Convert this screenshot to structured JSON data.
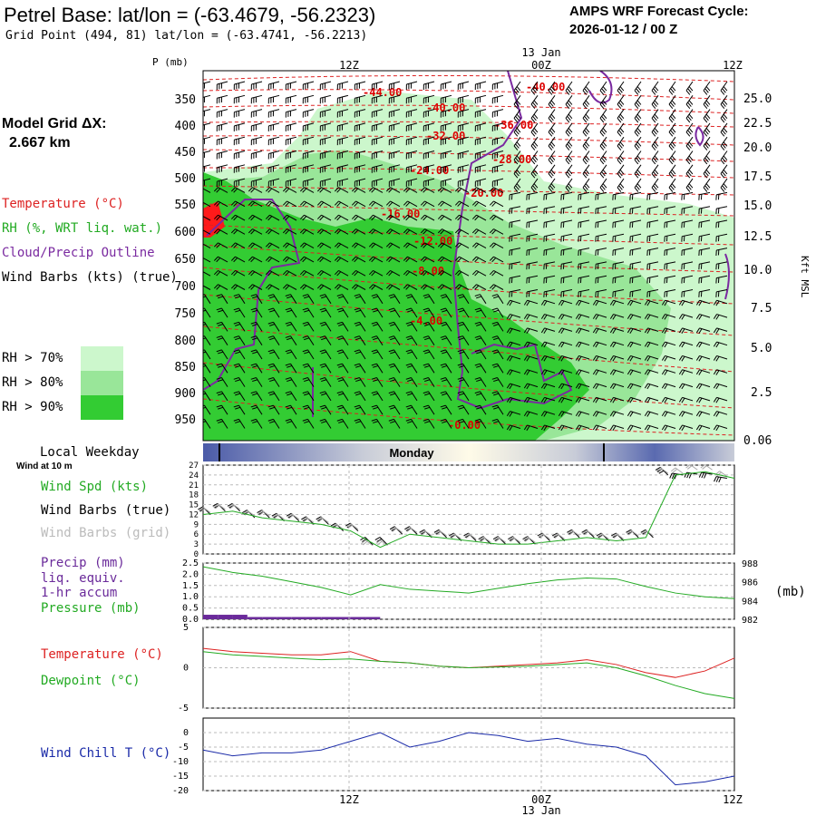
{
  "header": {
    "title": "Petrel Base:  lat/lon = (-63.4679, -56.2323)",
    "grid_point": "Grid Point (494, 81) lat/lon = (-63.4741, -56.2213)",
    "cycle_line1": "AMPS WRF Forecast Cycle:",
    "cycle_line2": "2026-01-12 / 00  Z"
  },
  "sidebar": {
    "model_grid_label": "Model Grid ΔX:",
    "model_grid_value": "2.667 km",
    "legend": [
      {
        "text": "Temperature (°C)",
        "color": "#dd2222"
      },
      {
        "text": "RH (%, WRT liq. wat.)",
        "color": "#22aa22"
      },
      {
        "text": "Cloud/Precip Outline",
        "color": "#7a2aa0"
      },
      {
        "text": "Wind Barbs (kts) (true)",
        "color": "#000000"
      }
    ],
    "rh_legend": [
      {
        "label": "RH > 70%",
        "color": "#ccf7cc"
      },
      {
        "label": "RH > 80%",
        "color": "#99e699"
      },
      {
        "label": "RH > 90%",
        "color": "#33cc33"
      }
    ],
    "local_weekday": "Local Weekday",
    "wind_at": "Wind at 10 m"
  },
  "time_axis": {
    "top_date": "13 Jan",
    "bottom_date": "13 Jan",
    "ticks": [
      "12Z",
      "00Z",
      "12Z"
    ],
    "weekday_label": "Monday"
  },
  "chart_data": [
    {
      "type": "heatmap",
      "name": "vertical_cross_section",
      "ylabel": "P (mb)",
      "y2label": "Kft MSL",
      "pressure_ticks": [
        "350",
        "400",
        "450",
        "500",
        "550",
        "600",
        "650",
        "700",
        "750",
        "800",
        "850",
        "900",
        "950"
      ],
      "height_ticks": [
        "25.0",
        "22.5",
        "20.0",
        "17.5",
        "15.0",
        "12.5",
        "10.0",
        "7.5",
        "5.0",
        "2.5",
        "0.06"
      ],
      "temperature_contour_labels": [
        "-44.00",
        "-40.00",
        "-40.00",
        "-36.00",
        "-32.00",
        "-28.00",
        "-24.00",
        "-20.00",
        "-16.00",
        "-12.00",
        "-8.00",
        "-4.00",
        "-0.00"
      ]
    },
    {
      "type": "line",
      "name": "wind_speed",
      "ylabel": "Wind Spd (kts)",
      "ylim": [
        0,
        27
      ],
      "yticks": [
        "27",
        "24",
        "21",
        "18",
        "15",
        "12",
        "9",
        "6",
        "3",
        "0"
      ],
      "series_labels": [
        "Wind Spd (kts)",
        "Wind Barbs (true)",
        "Wind Barbs (grid)"
      ],
      "x_hours": [
        0,
        2,
        4,
        6,
        8,
        10,
        12,
        14,
        16,
        18,
        20,
        22,
        24,
        26,
        28,
        30,
        32,
        34,
        36
      ],
      "values": [
        12,
        13,
        11,
        10,
        9,
        7,
        2,
        6,
        5,
        4,
        3,
        3,
        4,
        5,
        4,
        5,
        24,
        25,
        23
      ]
    },
    {
      "type": "bar",
      "name": "precip_pressure",
      "series_labels": [
        "Precip (mm)",
        "liq. equiv.",
        "1-hr accum",
        "Pressure (mb)"
      ],
      "precip_ylim": [
        0,
        2.5
      ],
      "precip_yticks": [
        "2.5",
        "2.0",
        "1.5",
        "1.0",
        "0.5",
        "0.0"
      ],
      "pressure_ylim": [
        982,
        988
      ],
      "pressure_yticks": [
        "988",
        "986",
        "984",
        "982"
      ],
      "pressure_unit": "(mb)",
      "precip_hours": [
        0,
        1,
        2,
        3,
        4,
        5,
        6,
        7,
        8,
        9,
        10,
        11,
        12,
        13,
        14,
        15,
        16,
        17,
        18,
        19,
        20,
        21,
        22,
        23,
        24,
        25,
        26,
        27,
        28,
        29,
        30,
        31,
        32,
        33,
        34,
        35,
        36
      ],
      "precip_values": [
        0.2,
        0.2,
        0.2,
        0.1,
        0.1,
        0.1,
        0.1,
        0.1,
        0.1,
        0.1,
        0.1,
        0.1,
        0.0,
        0.0,
        0.0,
        0.0,
        0.0,
        0.0,
        0.0,
        0.0,
        0.0,
        0.0,
        0.0,
        0.0,
        0.0,
        0.0,
        0.0,
        0.0,
        0.0,
        0.0,
        0.0,
        0.0,
        0.0,
        0.0,
        0.0,
        0.0,
        0.0
      ],
      "pressure_hours": [
        0,
        2,
        4,
        6,
        8,
        10,
        12,
        14,
        16,
        18,
        20,
        22,
        24,
        26,
        28,
        30,
        32,
        34,
        36
      ],
      "pressure_values": [
        987.6,
        987.0,
        986.6,
        986.0,
        985.4,
        984.6,
        985.7,
        985.2,
        985.0,
        984.8,
        985.3,
        985.8,
        986.2,
        986.4,
        986.3,
        985.5,
        984.8,
        984.4,
        984.2
      ]
    },
    {
      "type": "line",
      "name": "temperature_dewpoint",
      "series_labels": [
        "Temperature (°C)",
        "Dewpoint (°C)"
      ],
      "ylim": [
        -5,
        5
      ],
      "yticks": [
        "5",
        "0",
        "-5"
      ],
      "x_hours": [
        0,
        2,
        4,
        6,
        8,
        10,
        12,
        14,
        16,
        18,
        20,
        22,
        24,
        26,
        28,
        30,
        32,
        34,
        36
      ],
      "temperature": [
        2.4,
        2.0,
        1.8,
        1.6,
        1.6,
        2.0,
        0.8,
        0.6,
        0.2,
        0.0,
        0.2,
        0.4,
        0.6,
        1.0,
        0.4,
        -0.6,
        -1.2,
        -0.4,
        1.2
      ],
      "dewpoint": [
        2.0,
        1.6,
        1.4,
        1.2,
        1.0,
        1.1,
        0.8,
        0.6,
        0.2,
        0.0,
        0.1,
        0.2,
        0.4,
        0.6,
        0.0,
        -1.0,
        -2.2,
        -3.2,
        -3.8
      ]
    },
    {
      "type": "line",
      "name": "wind_chill",
      "series_labels": [
        "Wind Chill T (°C)"
      ],
      "ylim": [
        -20,
        5
      ],
      "yticks": [
        "0",
        "-5",
        "-10",
        "-15",
        "-20"
      ],
      "x_hours": [
        0,
        2,
        4,
        6,
        8,
        10,
        12,
        14,
        16,
        18,
        20,
        22,
        24,
        26,
        28,
        30,
        32,
        34,
        36
      ],
      "values": [
        -6,
        -8,
        -7,
        -7,
        -6,
        -3,
        0,
        -5,
        -3,
        0,
        -1,
        -3,
        -2,
        -4,
        -5,
        -8,
        -18,
        -17,
        -15
      ]
    }
  ],
  "colors": {
    "temp_red": "#dd2222",
    "rh_green": "#22aa22",
    "cloud_purple": "#7a2aa0",
    "precip_purple": "#6a2a9a",
    "windchill_blue": "#1a2aa8",
    "weekday_blue": "#4a5aa8"
  }
}
